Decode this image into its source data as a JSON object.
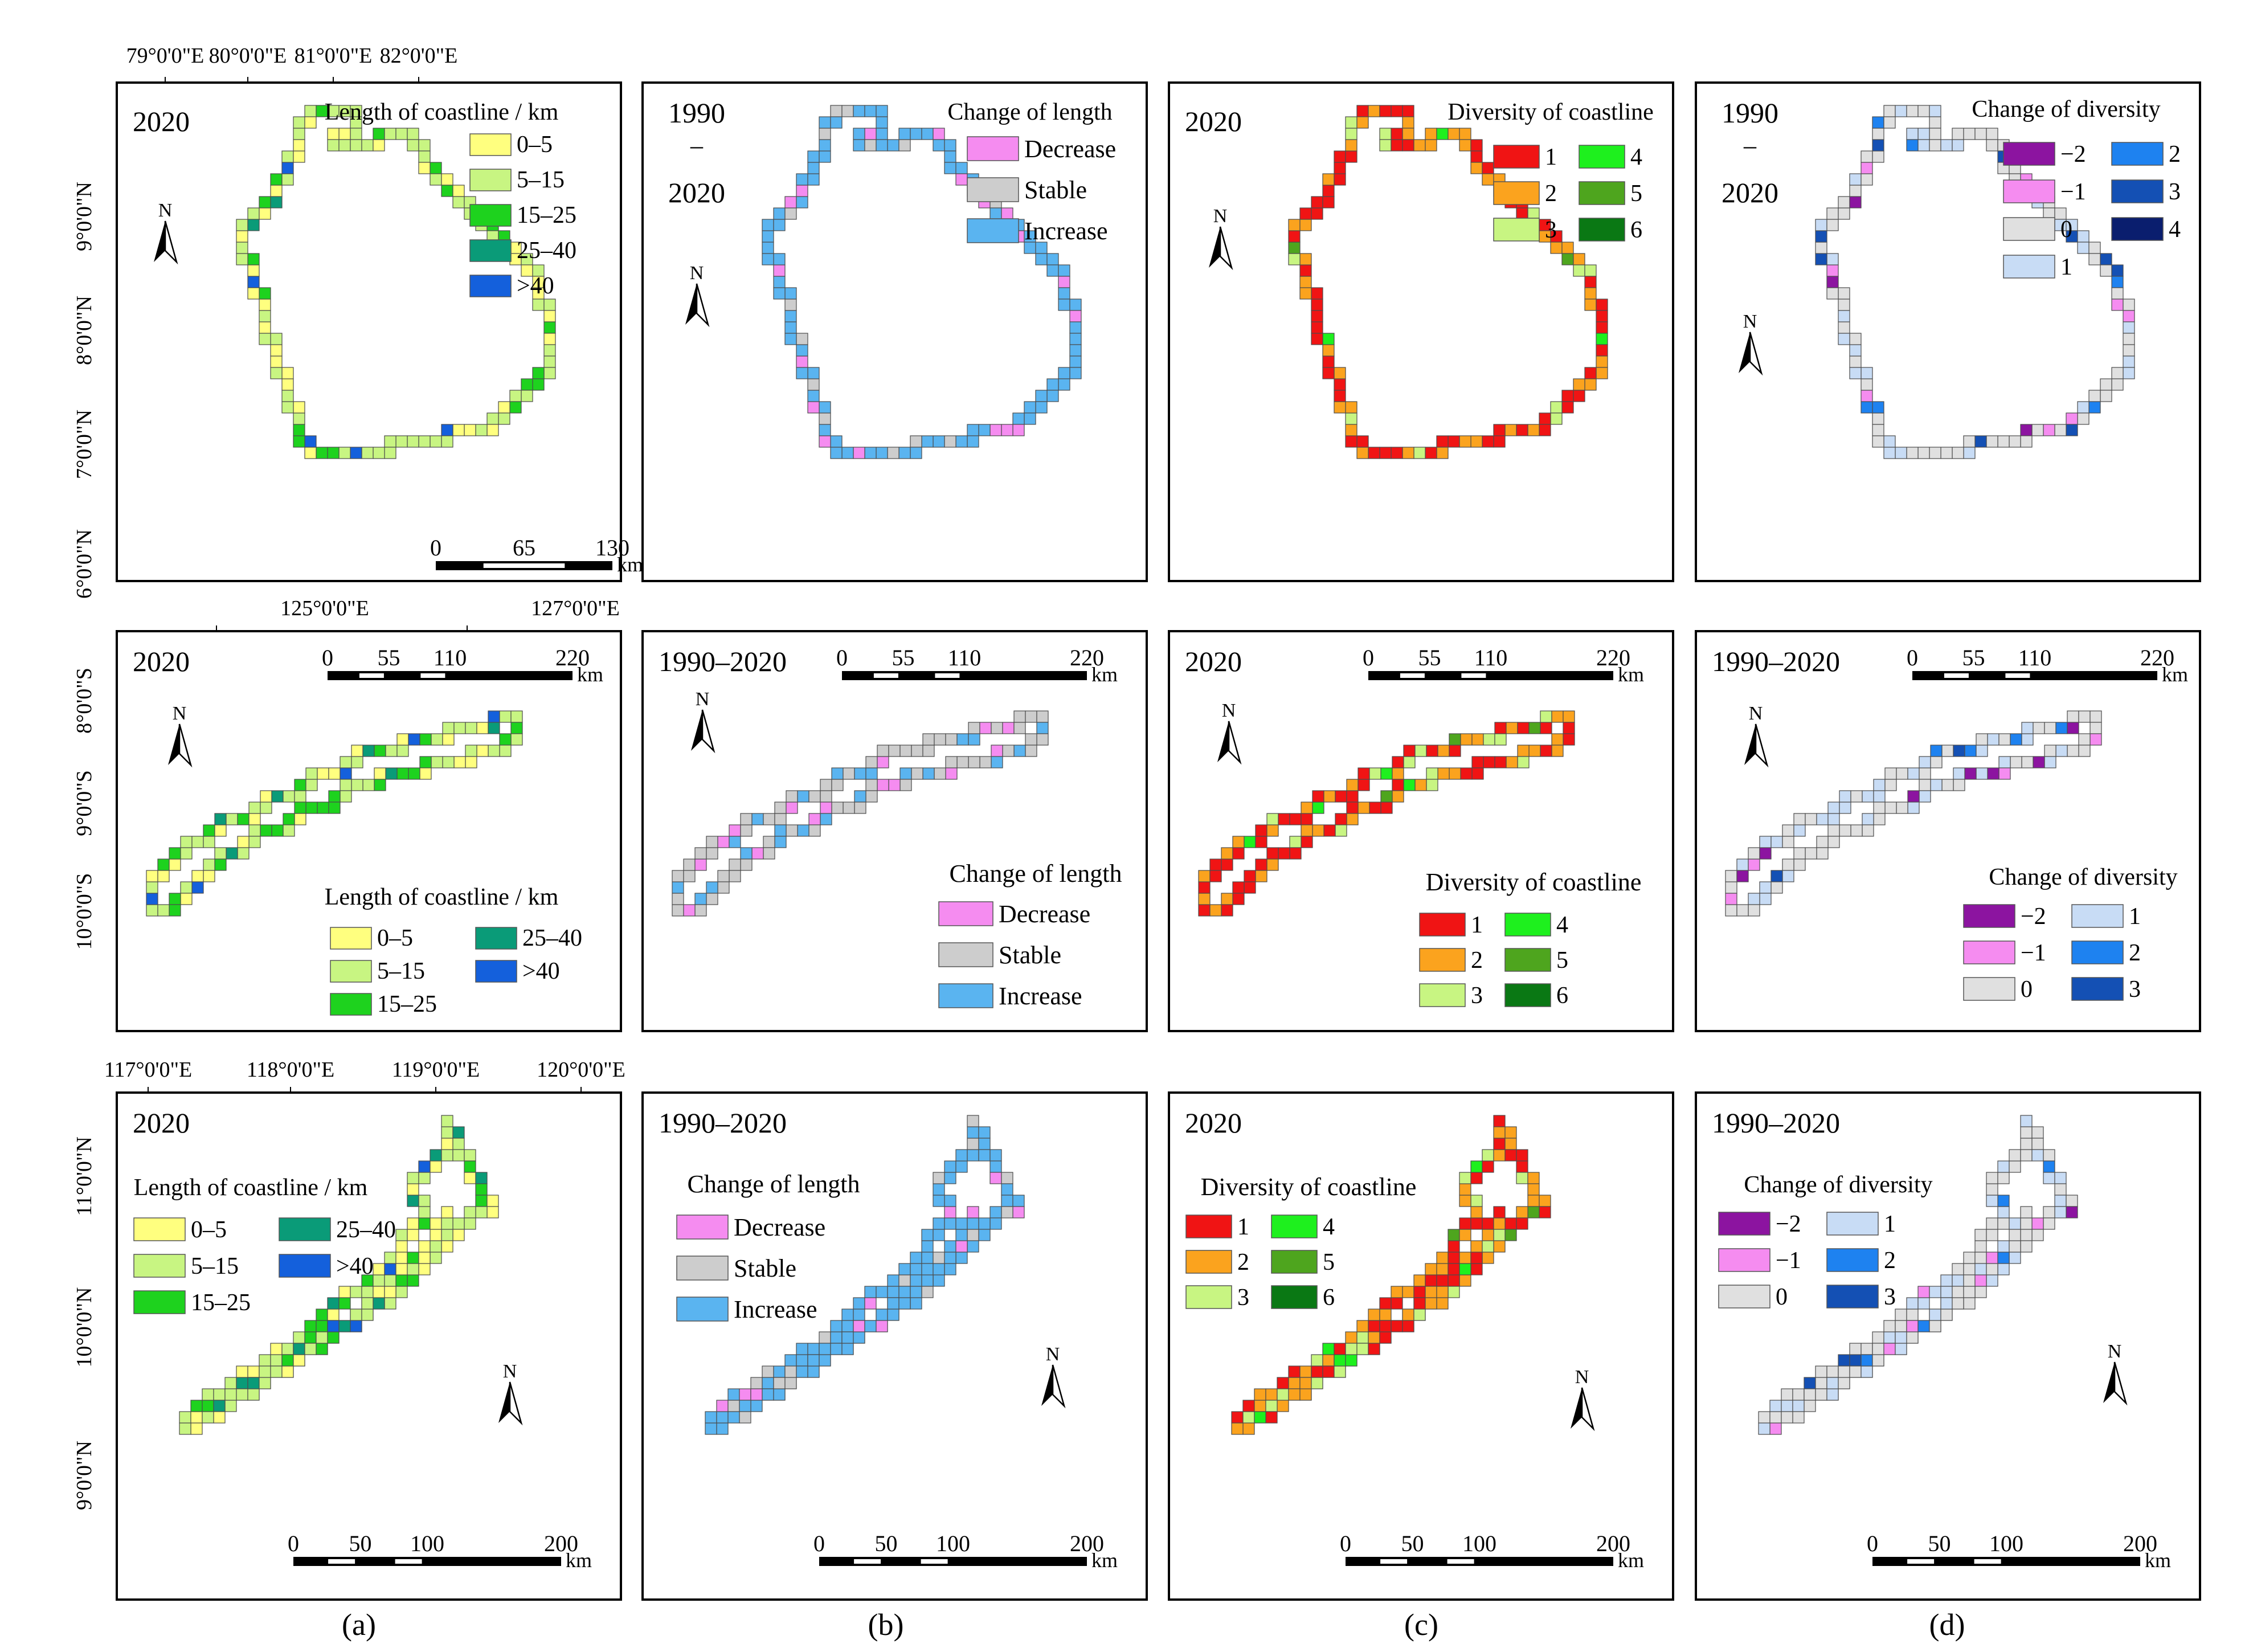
{
  "colors": {
    "length": {
      "0-5": "#ffff7f",
      "5-15": "#c8f582",
      "15-25": "#1ed21e",
      "25-40": "#0a9b78",
      "gt40": "#1460dc"
    },
    "change": {
      "decrease": "#f58cf0",
      "stable": "#cdcdcd",
      "increase": "#5ab4f0"
    },
    "diversity": {
      "1": "#f01414",
      "2": "#fba31e",
      "3": "#c8f582",
      "4": "#1ef01e",
      "5": "#4ea51e",
      "6": "#0a7814"
    },
    "divchange": {
      "-2": "#8c14a0",
      "-1": "#f58cf0",
      "0": "#e0e0e0",
      "1": "#c8dcf5",
      "2": "#1e82f0",
      "3": "#1450b4",
      "4": "#0a1e6e"
    },
    "cell_border": "#4b4b4b"
  },
  "rows": [
    {
      "id": "sri-lanka",
      "top_axis": [
        "79°0'0\"E",
        "80°0'0\"E",
        "81°0'0\"E",
        "82°0'0\"E"
      ],
      "left_axis": [
        "9°0'0\"N",
        "8°0'0\"N",
        "7°0'0\"N",
        "6°0'0\"N"
      ],
      "scalebar": {
        "ticks": [
          "0",
          "65",
          "130"
        ],
        "unit": "km"
      },
      "panels": [
        {
          "title": "2020",
          "legend_title": "Length of coastline / km",
          "legend": [
            [
              "0–5",
              "0-5"
            ],
            [
              "5–15",
              "5-15"
            ],
            [
              "15–25",
              "15-25"
            ],
            [
              "25–40",
              "25-40"
            ],
            [
              ">40",
              "gt40"
            ]
          ]
        },
        {
          "title_a": "1990",
          "title_dash": "–",
          "title_b": "2020",
          "legend_title": "Change of length",
          "legend": [
            [
              "Decrease",
              "decrease"
            ],
            [
              "Stable",
              "stable"
            ],
            [
              "Increase",
              "increase"
            ]
          ]
        },
        {
          "title": "2020",
          "legend_title": "Diversity of coastline",
          "legend": [
            [
              "1",
              "1"
            ],
            [
              "2",
              "2"
            ],
            [
              "3",
              "3"
            ],
            [
              "4",
              "4"
            ],
            [
              "5",
              "5"
            ],
            [
              "6",
              "6"
            ]
          ]
        },
        {
          "title_a": "1990",
          "title_dash": "–",
          "title_b": "2020",
          "legend_title": "Change of diversity",
          "legend": [
            [
              "−2",
              "-2"
            ],
            [
              "−1",
              "-1"
            ],
            [
              "0",
              "0"
            ],
            [
              "1",
              "1"
            ],
            [
              "2",
              "2"
            ],
            [
              "3",
              "3"
            ],
            [
              "4",
              "4"
            ]
          ]
        }
      ]
    },
    {
      "id": "samar",
      "top_axis": [
        "125°0'0\"E",
        "127°0'0\"E"
      ],
      "left_axis": [
        "8°0'0\"S",
        "9°0'0\"S",
        "10°0'0\"S"
      ],
      "scalebar": {
        "ticks": [
          "0",
          "55",
          "110",
          "220"
        ],
        "unit": "km"
      },
      "panels": [
        {
          "title": "2020",
          "legend_title": "Length of coastline / km",
          "legend": [
            [
              "0–5",
              "0-5"
            ],
            [
              "5–15",
              "5-15"
            ],
            [
              "15–25",
              "15-25"
            ],
            [
              "25–40",
              "25-40"
            ],
            [
              ">40",
              "gt40"
            ]
          ]
        },
        {
          "title": "1990–2020",
          "legend_title": "Change of length",
          "legend": [
            [
              "Decrease",
              "decrease"
            ],
            [
              "Stable",
              "stable"
            ],
            [
              "Increase",
              "increase"
            ]
          ]
        },
        {
          "title": "2020",
          "legend_title": "Diversity of coastline",
          "legend": [
            [
              "1",
              "1"
            ],
            [
              "2",
              "2"
            ],
            [
              "3",
              "3"
            ],
            [
              "4",
              "4"
            ],
            [
              "5",
              "5"
            ],
            [
              "6",
              "6"
            ]
          ]
        },
        {
          "title": "1990–2020",
          "legend_title": "Change of diversity",
          "legend": [
            [
              "−2",
              "-2"
            ],
            [
              "−1",
              "-1"
            ],
            [
              "0",
              "0"
            ],
            [
              "1",
              "1"
            ],
            [
              "2",
              "2"
            ],
            [
              "3",
              "3"
            ]
          ]
        }
      ]
    },
    {
      "id": "palawan",
      "top_axis": [
        "117°0'0\"E",
        "118°0'0\"E",
        "119°0'0\"E",
        "120°0'0\"E"
      ],
      "left_axis": [
        "11°0'0\"N",
        "10°0'0\"N",
        "9°0'0\"N"
      ],
      "scalebar": {
        "ticks": [
          "0",
          "50",
          "100",
          "200"
        ],
        "unit": "km"
      },
      "panels": [
        {
          "title": "2020",
          "legend_title": "Length of coastline / km",
          "legend": [
            [
              "0–5",
              "0-5"
            ],
            [
              "5–15",
              "5-15"
            ],
            [
              "15–25",
              "15-25"
            ],
            [
              "25–40",
              "25-40"
            ],
            [
              ">40",
              "gt40"
            ]
          ]
        },
        {
          "title": "1990–2020",
          "legend_title": "Change of length",
          "legend": [
            [
              "Decrease",
              "decrease"
            ],
            [
              "Stable",
              "stable"
            ],
            [
              "Increase",
              "increase"
            ]
          ]
        },
        {
          "title": "2020",
          "legend_title": "Diversity of coastline",
          "legend": [
            [
              "1",
              "1"
            ],
            [
              "2",
              "2"
            ],
            [
              "3",
              "3"
            ],
            [
              "4",
              "4"
            ],
            [
              "5",
              "5"
            ],
            [
              "6",
              "6"
            ]
          ]
        },
        {
          "title": "1990–2020",
          "legend_title": "Change of diversity",
          "legend": [
            [
              "−2",
              "-2"
            ],
            [
              "−1",
              "-1"
            ],
            [
              "0",
              "0"
            ],
            [
              "1",
              "1"
            ],
            [
              "2",
              "2"
            ],
            [
              "3",
              "3"
            ]
          ]
        }
      ]
    }
  ],
  "north_label": "N",
  "captions": [
    "(a)",
    "(b)",
    "(c)",
    "(d)"
  ]
}
